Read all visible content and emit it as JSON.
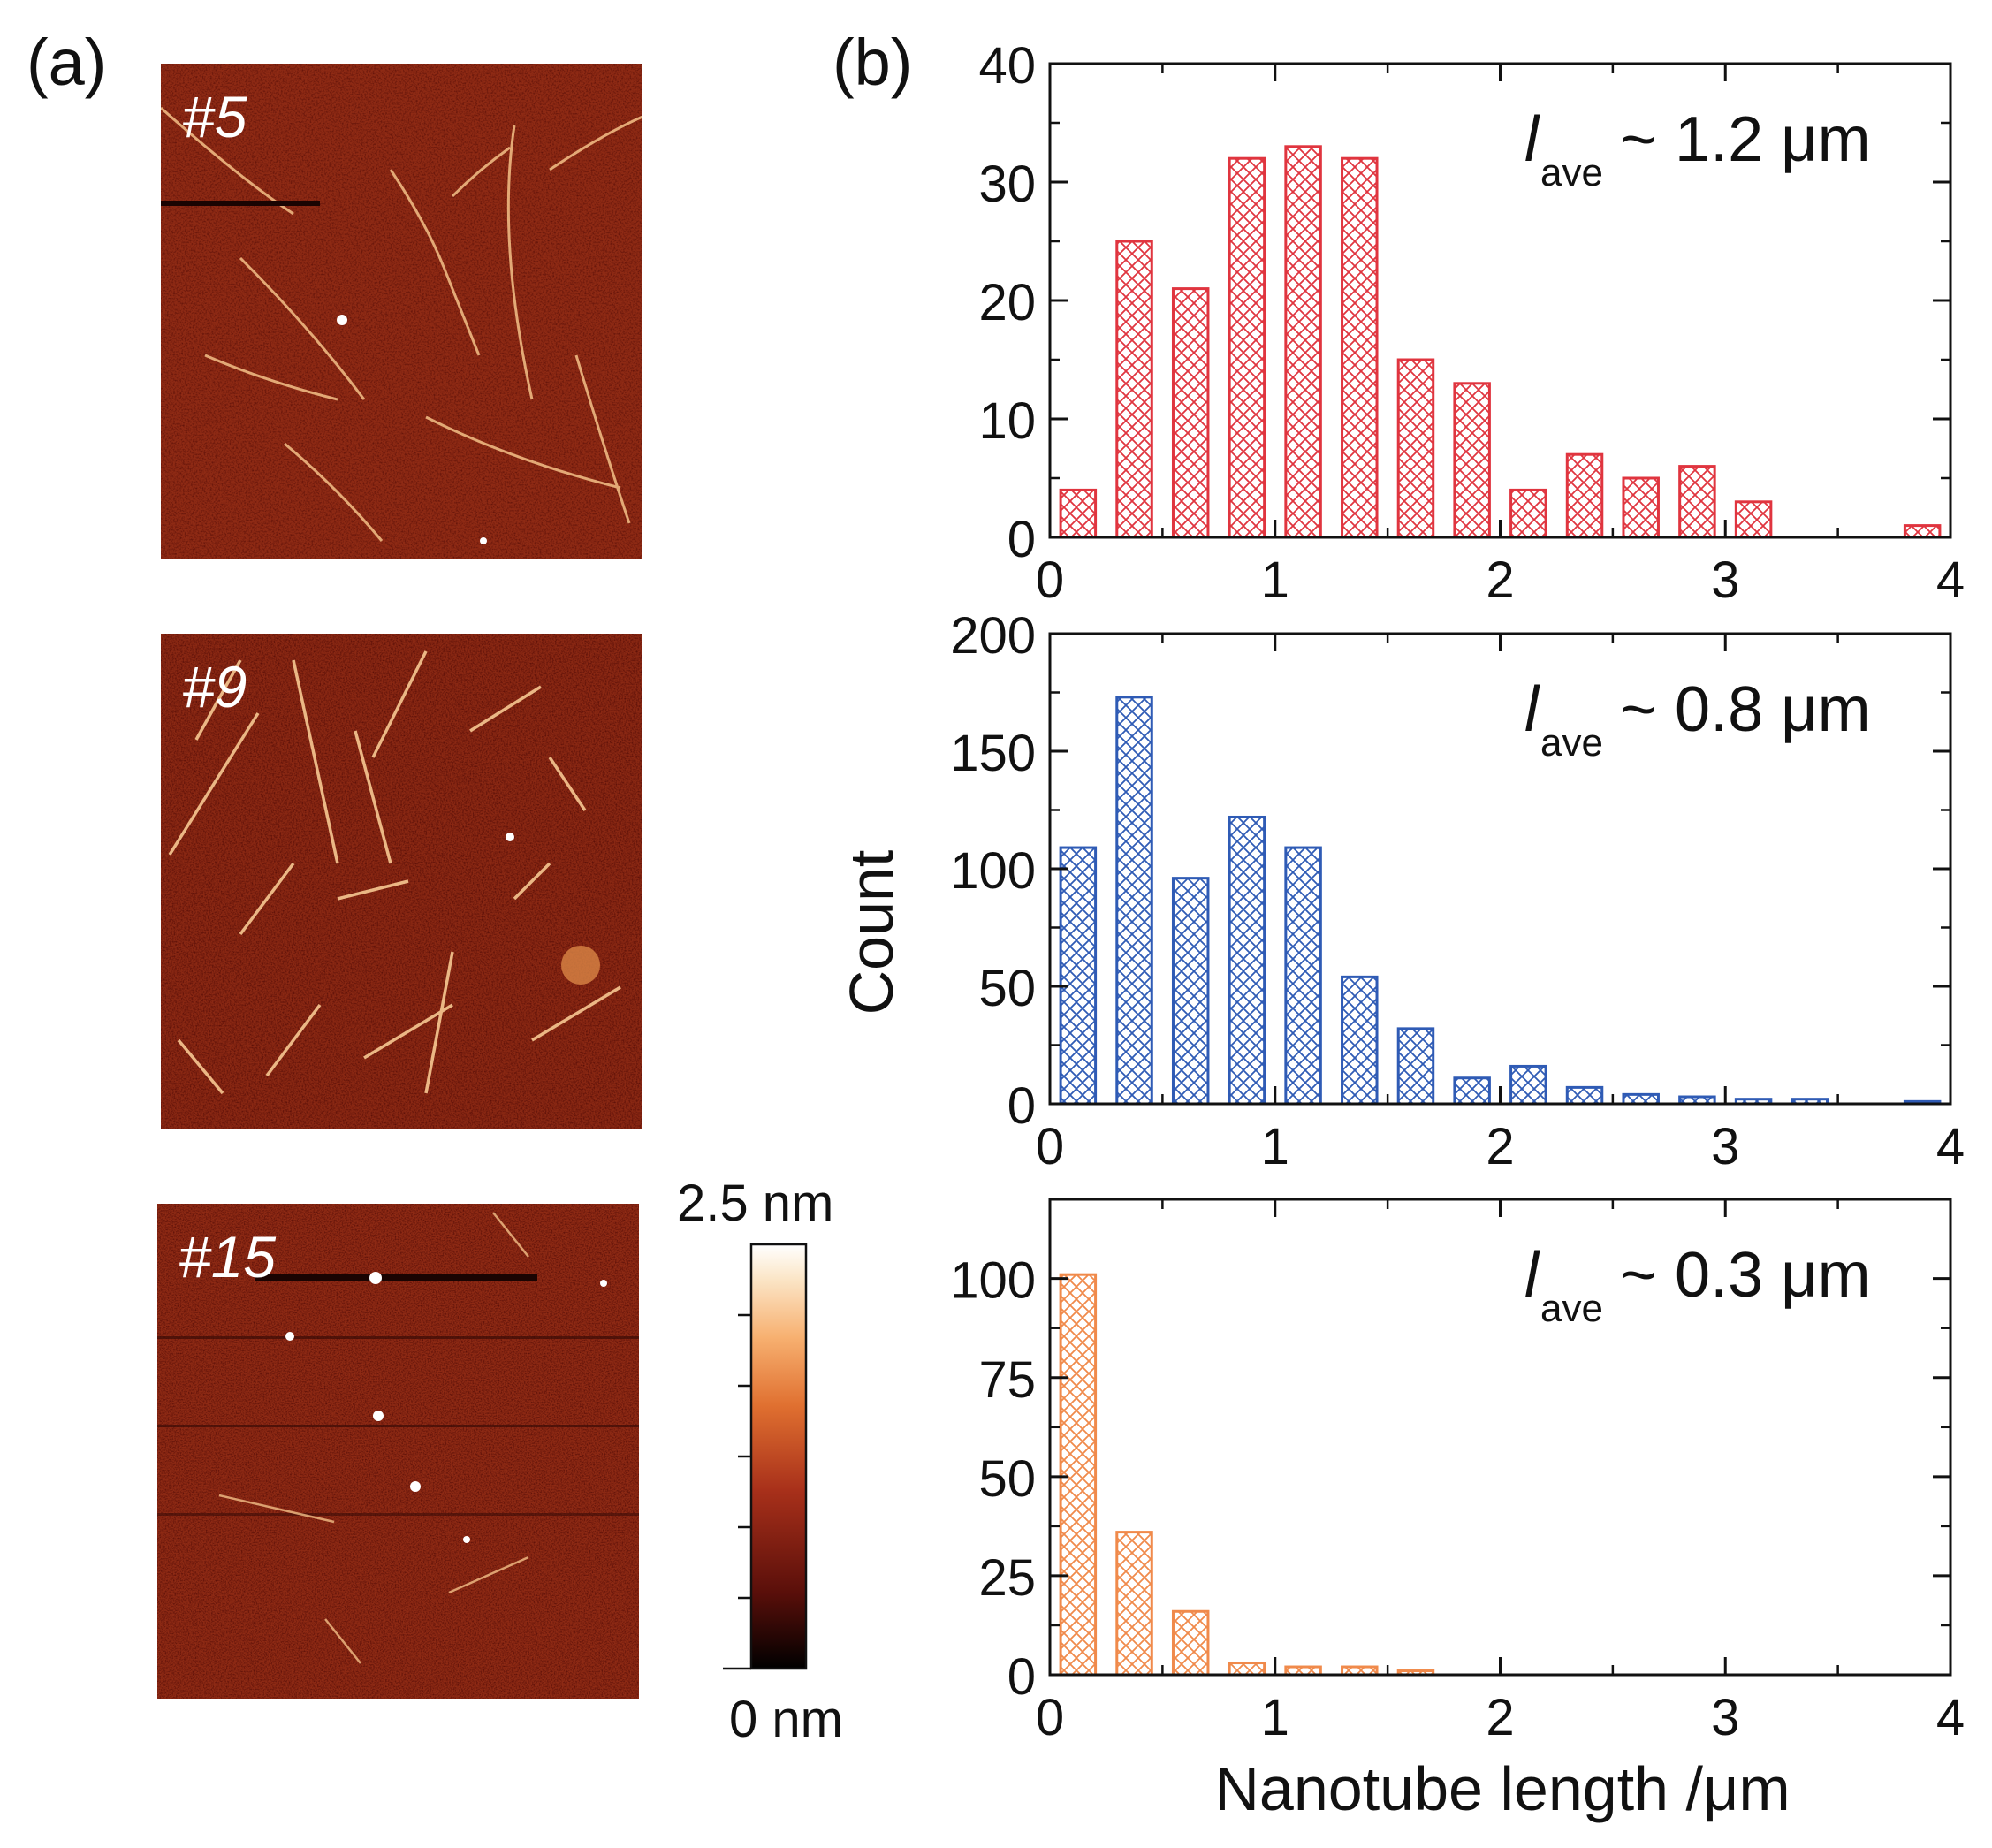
{
  "panels": {
    "a_label": "(a)",
    "b_label": "(b)",
    "images": [
      {
        "label": "#5"
      },
      {
        "label": "#9"
      },
      {
        "label": "#15"
      }
    ]
  },
  "colorbar": {
    "max_label": "2.5 nm",
    "min_label": "0 nm",
    "range": [
      0,
      2.5
    ],
    "colors": [
      "#000000",
      "#5a0f0a",
      "#a8301a",
      "#e07030",
      "#f7b070",
      "#fbe6c8",
      "#ffffff"
    ]
  },
  "chart_data": {
    "type": "bar",
    "xlabel": "Nanotube length /μm",
    "ylabel": "Count",
    "xlim": [
      0,
      4
    ],
    "xticks": [
      "0",
      "1",
      "2",
      "3",
      "4"
    ],
    "x": [
      0.125,
      0.375,
      0.625,
      0.875,
      1.125,
      1.375,
      1.625,
      1.875,
      2.125,
      2.375,
      2.625,
      2.875,
      3.125,
      3.375,
      3.625,
      3.875
    ],
    "series": [
      {
        "name": "#5",
        "color": "#e0353f",
        "annotation": {
          "symbol": "l",
          "subscript": "ave",
          "text": "~ 1.2 μm"
        },
        "ylim": [
          0,
          40
        ],
        "yticks": [
          "0",
          "10",
          "20",
          "30",
          "40"
        ],
        "values": [
          4,
          25,
          21,
          32,
          33,
          32,
          15,
          13,
          4,
          7,
          5,
          6,
          3,
          0,
          0,
          1
        ]
      },
      {
        "name": "#9",
        "color": "#2f5bb5",
        "annotation": {
          "symbol": "l",
          "subscript": "ave",
          "text": "~ 0.8 μm"
        },
        "ylim": [
          0,
          200
        ],
        "yticks": [
          "0",
          "50",
          "100",
          "150",
          "200"
        ],
        "values": [
          109,
          173,
          96,
          122,
          109,
          54,
          32,
          11,
          16,
          7,
          4,
          3,
          2,
          2,
          0,
          1
        ]
      },
      {
        "name": "#15",
        "color": "#f08a4b",
        "annotation": {
          "symbol": "l",
          "subscript": "ave",
          "text": "~ 0.3 μm"
        },
        "ylim": [
          0,
          120
        ],
        "yticks": [
          "0",
          "25",
          "50",
          "75",
          "100"
        ],
        "values": [
          101,
          36,
          16,
          3,
          2,
          2,
          1,
          0,
          0,
          0,
          0,
          0,
          0,
          0,
          0,
          0
        ]
      }
    ]
  }
}
